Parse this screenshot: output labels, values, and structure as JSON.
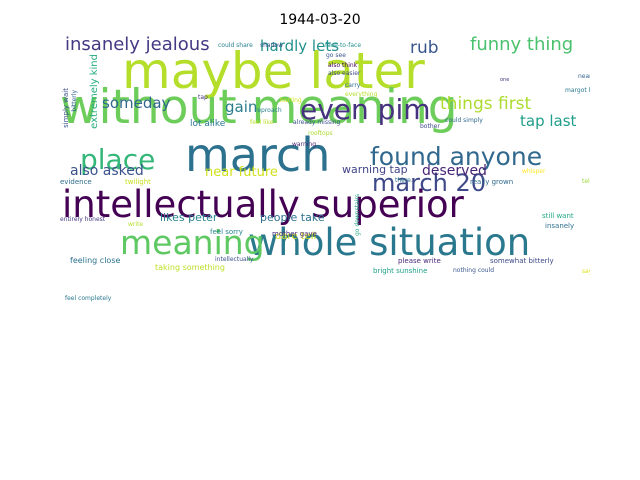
{
  "page": {
    "title": "1944-03-20"
  },
  "words": [
    {
      "text": "maybe later",
      "color": "#b5de2b"
    },
    {
      "text": "without meaning",
      "color": "#6ccd5a"
    },
    {
      "text": "march",
      "color": "#2c728e"
    },
    {
      "text": "intellectually superior",
      "color": "#440154"
    },
    {
      "text": "whole situation",
      "color": "#2a788e"
    },
    {
      "text": "meaning",
      "color": "#5ec962"
    },
    {
      "text": "found anyone",
      "color": "#31688e"
    },
    {
      "text": "place",
      "color": "#35b779"
    },
    {
      "text": "march 20",
      "color": "#3e4989"
    },
    {
      "text": "even pim",
      "color": "#46327e"
    },
    {
      "text": "insanely jealous",
      "color": "#443983"
    },
    {
      "text": "funny thing",
      "color": "#4ac16d"
    },
    {
      "text": "things first",
      "color": "#addc30"
    },
    {
      "text": "hardly lets",
      "color": "#21918c"
    },
    {
      "text": "rub",
      "color": "#39568c"
    },
    {
      "text": "someday",
      "color": "#31688e"
    },
    {
      "text": "gain",
      "color": "#287c8e"
    },
    {
      "text": "tap last",
      "color": "#1f9e89"
    },
    {
      "text": "also asked",
      "color": "#3b528b"
    },
    {
      "text": "near future",
      "color": "#d0e11c"
    },
    {
      "text": "deserved",
      "color": "#482475"
    },
    {
      "text": "warning tap",
      "color": "#414487"
    },
    {
      "text": "likes peter",
      "color": "#26828e"
    },
    {
      "text": "people take",
      "color": "#2d708e"
    },
    {
      "text": "dare tell",
      "color": "#d8e219"
    },
    {
      "text": "lot alike",
      "color": "#2a788e"
    },
    {
      "text": "extremely kind",
      "color": "#27ad81"
    },
    {
      "text": "simply wait",
      "color": "#3b528b"
    },
    {
      "text": "bitterly",
      "color": "#33638d"
    },
    {
      "text": "evidence",
      "color": "#2e6e8e"
    },
    {
      "text": "twilight",
      "color": "#c8e020"
    },
    {
      "text": "entirely honest",
      "color": "#443a83"
    },
    {
      "text": "really grown",
      "color": "#31688e"
    },
    {
      "text": "feeling close",
      "color": "#2c728e"
    },
    {
      "text": "taking something",
      "color": "#bddf26"
    },
    {
      "text": "feel completely",
      "color": "#2a788e"
    },
    {
      "text": "intellectually",
      "color": "#3b528b"
    },
    {
      "text": "feel sorry",
      "color": "#25858e"
    },
    {
      "text": "mother gave",
      "color": "#472d7b"
    },
    {
      "text": "write",
      "color": "#b5de2b"
    },
    {
      "text": "please write",
      "color": "#482878"
    },
    {
      "text": "bright sunshine",
      "color": "#1fa187"
    },
    {
      "text": "nothing could",
      "color": "#39568c"
    },
    {
      "text": "somewhat bitterly",
      "color": "#3e4a89"
    },
    {
      "text": "say much",
      "color": "#dde318"
    },
    {
      "text": "insanely",
      "color": "#2d708e"
    },
    {
      "text": "still want",
      "color": "#22a884"
    },
    {
      "text": "tell peter",
      "color": "#9bd93c"
    },
    {
      "text": "whisper",
      "color": "#fde725"
    },
    {
      "text": "could share",
      "color": "#26828e"
    },
    {
      "text": "shadow",
      "color": "#3b528b"
    },
    {
      "text": "face-to-face",
      "color": "#21918c"
    },
    {
      "text": "go see",
      "color": "#39568c"
    },
    {
      "text": "also think",
      "color": "#440154"
    },
    {
      "text": "also easier",
      "color": "#3e4989"
    },
    {
      "text": "near",
      "color": "#33638d"
    },
    {
      "text": "carry",
      "color": "#2e6e8e"
    },
    {
      "text": "everything",
      "color": "#b5de2b"
    },
    {
      "text": "margot likes",
      "color": "#2a788e"
    },
    {
      "text": "tap",
      "color": "#46327e"
    },
    {
      "text": "hurting",
      "color": "#d2e21b"
    },
    {
      "text": "reproach",
      "color": "#277f8e"
    },
    {
      "text": "feel like",
      "color": "#bddf26"
    },
    {
      "text": "already missing",
      "color": "#3b528b"
    },
    {
      "text": "could simply",
      "color": "#31688e"
    },
    {
      "text": "bother",
      "color": "#3e4989"
    },
    {
      "text": "warning",
      "color": "#482475"
    },
    {
      "text": "rooftops",
      "color": "#addc30"
    },
    {
      "text": "there.",
      "color": "#2c728e"
    },
    {
      "text": "go downstairs",
      "color": "#22a884"
    },
    {
      "text": "one",
      "color": "#46327e"
    }
  ]
}
